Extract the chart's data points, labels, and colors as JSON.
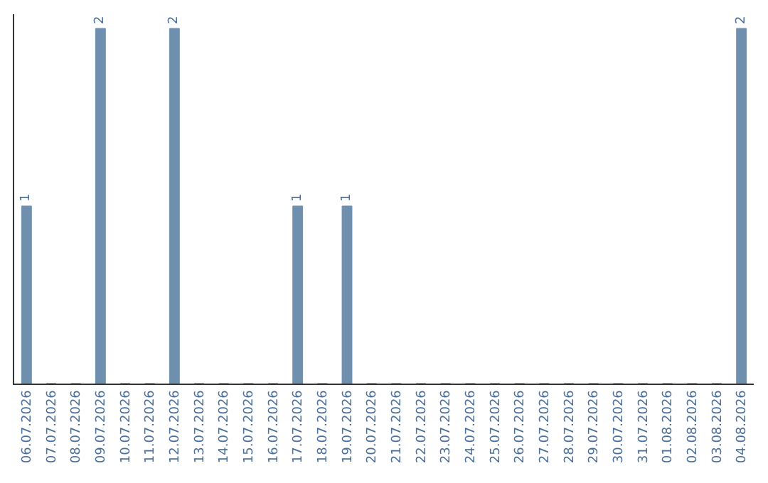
{
  "chart_data": {
    "type": "bar",
    "categories": [
      "06.07.2026",
      "07.07.2026",
      "08.07.2026",
      "09.07.2026",
      "10.07.2026",
      "11.07.2026",
      "12.07.2026",
      "13.07.2026",
      "14.07.2026",
      "15.07.2026",
      "16.07.2026",
      "17.07.2026",
      "18.07.2026",
      "19.07.2026",
      "20.07.2026",
      "21.07.2026",
      "22.07.2026",
      "23.07.2026",
      "24.07.2026",
      "25.07.2026",
      "26.07.2026",
      "27.07.2026",
      "28.07.2026",
      "29.07.2026",
      "30.07.2026",
      "31.07.2026",
      "01.08.2026",
      "02.08.2026",
      "03.08.2026",
      "04.08.2026"
    ],
    "values": [
      1,
      0,
      0,
      2,
      0,
      0,
      2,
      0,
      0,
      0,
      0,
      1,
      0,
      1,
      0,
      0,
      0,
      0,
      0,
      0,
      0,
      0,
      0,
      0,
      0,
      0,
      0,
      0,
      0,
      2
    ],
    "value_labels": [
      "1",
      null,
      null,
      "2",
      null,
      null,
      "2",
      null,
      null,
      null,
      null,
      "1",
      null,
      "1",
      null,
      null,
      null,
      null,
      null,
      null,
      null,
      null,
      null,
      null,
      null,
      null,
      null,
      null,
      null,
      "2"
    ],
    "color": "#6e8fad",
    "ylim": [
      0,
      2.08
    ],
    "tick_labels": "x",
    "legend": false
  }
}
